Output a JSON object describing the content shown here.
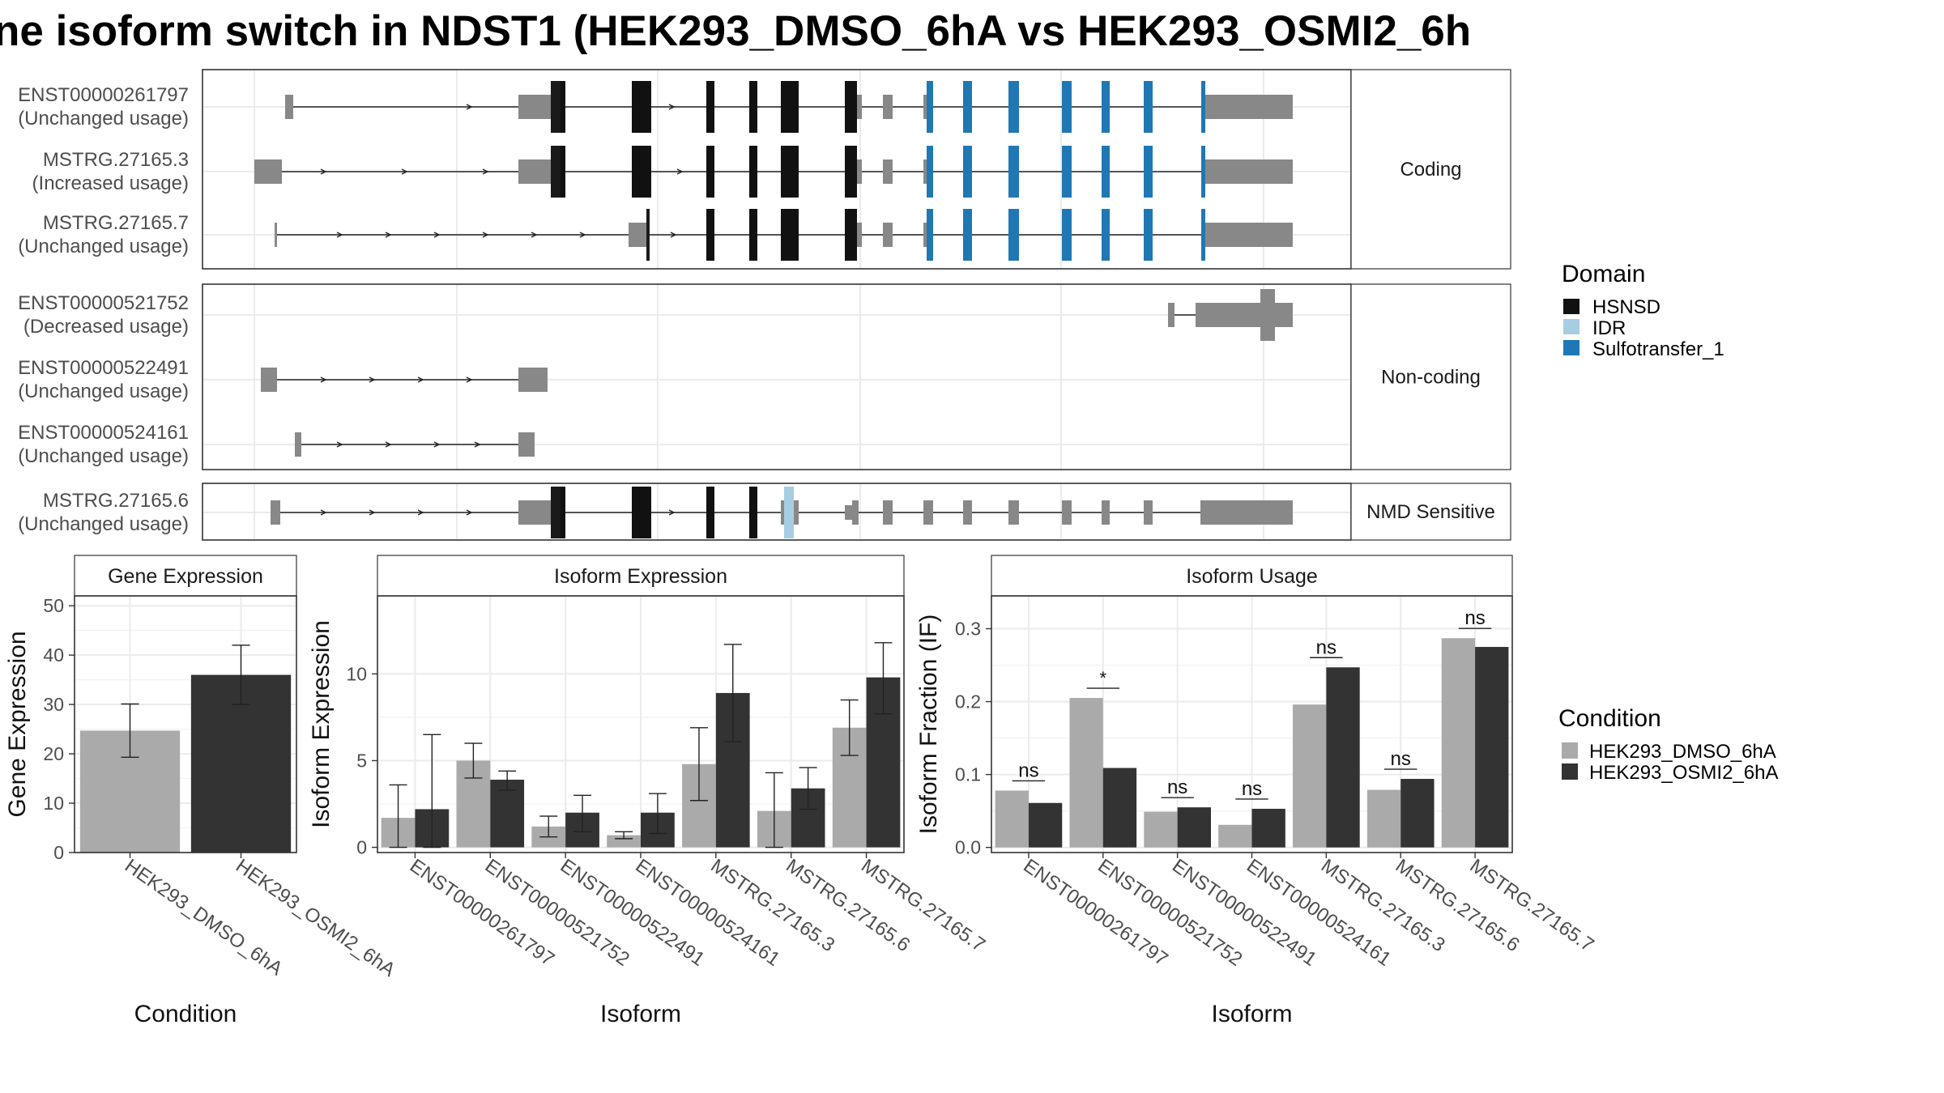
{
  "title": "ne isoform switch in NDST1 (HEK293_DMSO_6hA vs HEK293_OSMI2_6h",
  "colors": {
    "utr": "#888888",
    "cds": "#1a1a1a",
    "HSNSD": "#111111",
    "IDR": "#a6cee3",
    "Sulfotransfer_1": "#1f78b4",
    "cond1": "#aaaaaa",
    "cond2": "#333333"
  },
  "structure": {
    "panels": [
      {
        "label": "Coding",
        "transcripts": [
          {
            "id": "ENST00000261797",
            "usage": "(Unchanged usage)",
            "intron": [
              352,
              1595
            ],
            "arrows": [
              580,
              830
            ],
            "exons": [
              {
                "s": 352,
                "e": 362,
                "t": "utr"
              },
              {
                "s": 640,
                "e": 686,
                "t": "utr"
              },
              {
                "s": 662,
                "e": 686,
                "t": "utr"
              },
              {
                "s": 680,
                "e": 692,
                "t": "cds"
              },
              {
                "s": 692,
                "e": 698,
                "t": "HSNSD"
              },
              {
                "s": 780,
                "e": 804,
                "t": "HSNSD"
              },
              {
                "s": 872,
                "e": 882,
                "t": "HSNSD"
              },
              {
                "s": 925,
                "e": 935,
                "t": "HSNSD"
              },
              {
                "s": 964,
                "e": 986,
                "t": "HSNSD"
              },
              {
                "s": 1043,
                "e": 1058,
                "t": "HSNSD"
              },
              {
                "s": 1058,
                "e": 1064,
                "t": "utr"
              },
              {
                "s": 1090,
                "e": 1102,
                "t": "utr"
              },
              {
                "s": 1140,
                "e": 1144,
                "t": "utr"
              },
              {
                "s": 1144,
                "e": 1152,
                "t": "Sulfotransfer_1"
              },
              {
                "s": 1189,
                "e": 1200,
                "t": "Sulfotransfer_1"
              },
              {
                "s": 1245,
                "e": 1258,
                "t": "Sulfotransfer_1"
              },
              {
                "s": 1311,
                "e": 1323,
                "t": "Sulfotransfer_1"
              },
              {
                "s": 1360,
                "e": 1370,
                "t": "Sulfotransfer_1"
              },
              {
                "s": 1412,
                "e": 1423,
                "t": "Sulfotransfer_1"
              },
              {
                "s": 1483,
                "e": 1488,
                "t": "Sulfotransfer_1"
              },
              {
                "s": 1488,
                "e": 1596,
                "t": "utr"
              }
            ]
          },
          {
            "id": "MSTRG.27165.3",
            "usage": "(Increased usage)",
            "intron": [
              314,
              1595
            ],
            "arrows": [
              400,
              500,
              600,
              840
            ],
            "exons": [
              {
                "s": 314,
                "e": 348,
                "t": "utr"
              },
              {
                "s": 640,
                "e": 686,
                "t": "utr"
              },
              {
                "s": 662,
                "e": 686,
                "t": "utr"
              },
              {
                "s": 680,
                "e": 692,
                "t": "cds"
              },
              {
                "s": 692,
                "e": 698,
                "t": "HSNSD"
              },
              {
                "s": 780,
                "e": 804,
                "t": "HSNSD"
              },
              {
                "s": 872,
                "e": 882,
                "t": "HSNSD"
              },
              {
                "s": 925,
                "e": 935,
                "t": "HSNSD"
              },
              {
                "s": 964,
                "e": 986,
                "t": "HSNSD"
              },
              {
                "s": 1043,
                "e": 1058,
                "t": "HSNSD"
              },
              {
                "s": 1058,
                "e": 1064,
                "t": "utr"
              },
              {
                "s": 1090,
                "e": 1102,
                "t": "utr"
              },
              {
                "s": 1140,
                "e": 1144,
                "t": "utr"
              },
              {
                "s": 1144,
                "e": 1152,
                "t": "Sulfotransfer_1"
              },
              {
                "s": 1189,
                "e": 1200,
                "t": "Sulfotransfer_1"
              },
              {
                "s": 1245,
                "e": 1258,
                "t": "Sulfotransfer_1"
              },
              {
                "s": 1311,
                "e": 1323,
                "t": "Sulfotransfer_1"
              },
              {
                "s": 1360,
                "e": 1370,
                "t": "Sulfotransfer_1"
              },
              {
                "s": 1412,
                "e": 1423,
                "t": "Sulfotransfer_1"
              },
              {
                "s": 1483,
                "e": 1488,
                "t": "Sulfotransfer_1"
              },
              {
                "s": 1488,
                "e": 1596,
                "t": "utr"
              }
            ]
          },
          {
            "id": "MSTRG.27165.7",
            "usage": "(Unchanged usage)",
            "intron": [
              340,
              1595
            ],
            "arrows": [
              420,
              480,
              540,
              600,
              660,
              720,
              832
            ],
            "exons": [
              {
                "s": 339,
                "e": 342,
                "t": "utr"
              },
              {
                "s": 776,
                "e": 800,
                "t": "utr"
              },
              {
                "s": 798,
                "e": 802,
                "t": "cds"
              },
              {
                "s": 872,
                "e": 882,
                "t": "HSNSD"
              },
              {
                "s": 925,
                "e": 935,
                "t": "HSNSD"
              },
              {
                "s": 964,
                "e": 986,
                "t": "HSNSD"
              },
              {
                "s": 1043,
                "e": 1058,
                "t": "HSNSD"
              },
              {
                "s": 1058,
                "e": 1064,
                "t": "utr"
              },
              {
                "s": 1090,
                "e": 1102,
                "t": "utr"
              },
              {
                "s": 1140,
                "e": 1144,
                "t": "utr"
              },
              {
                "s": 1144,
                "e": 1152,
                "t": "Sulfotransfer_1"
              },
              {
                "s": 1189,
                "e": 1200,
                "t": "Sulfotransfer_1"
              },
              {
                "s": 1245,
                "e": 1258,
                "t": "Sulfotransfer_1"
              },
              {
                "s": 1311,
                "e": 1323,
                "t": "Sulfotransfer_1"
              },
              {
                "s": 1360,
                "e": 1370,
                "t": "Sulfotransfer_1"
              },
              {
                "s": 1412,
                "e": 1423,
                "t": "Sulfotransfer_1"
              },
              {
                "s": 1483,
                "e": 1488,
                "t": "Sulfotransfer_1"
              },
              {
                "s": 1488,
                "e": 1596,
                "t": "utr"
              }
            ]
          }
        ]
      },
      {
        "label": "Non-coding",
        "transcripts": [
          {
            "id": "ENST00000521752",
            "usage": "(Decreased usage)",
            "intron": [
              1445,
              1595
            ],
            "arrows": [],
            "exons": [
              {
                "s": 1442,
                "e": 1450,
                "t": "utr"
              },
              {
                "s": 1476,
                "e": 1596,
                "t": "utr"
              },
              {
                "s": 1556,
                "e": 1574,
                "t": "utr",
                "big": true
              }
            ]
          },
          {
            "id": "ENST00000522491",
            "usage": "(Unchanged usage)",
            "intron": [
              322,
              676
            ],
            "arrows": [
              400,
              460,
              520,
              580
            ],
            "exons": [
              {
                "s": 322,
                "e": 342,
                "t": "utr"
              },
              {
                "s": 640,
                "e": 676,
                "t": "utr"
              }
            ]
          },
          {
            "id": "ENST00000524161",
            "usage": "(Unchanged usage)",
            "intron": [
              366,
              660
            ],
            "arrows": [
              420,
              480,
              540,
              590
            ],
            "exons": [
              {
                "s": 364,
                "e": 372,
                "t": "utr"
              },
              {
                "s": 640,
                "e": 660,
                "t": "utr"
              }
            ]
          }
        ]
      },
      {
        "label": "NMD Sensitive",
        "transcripts": [
          {
            "id": "MSTRG.27165.6",
            "usage": "(Unchanged usage)",
            "intron": [
              334,
              1595
            ],
            "arrows": [
              400,
              460,
              520,
              580,
              830,
              880
            ],
            "exons": [
              {
                "s": 334,
                "e": 346,
                "t": "utr"
              },
              {
                "s": 640,
                "e": 686,
                "t": "utr"
              },
              {
                "s": 662,
                "e": 686,
                "t": "utr"
              },
              {
                "s": 680,
                "e": 692,
                "t": "cds"
              },
              {
                "s": 692,
                "e": 698,
                "t": "HSNSD"
              },
              {
                "s": 780,
                "e": 804,
                "t": "HSNSD"
              },
              {
                "s": 872,
                "e": 882,
                "t": "HSNSD"
              },
              {
                "s": 925,
                "e": 935,
                "t": "HSNSD"
              },
              {
                "s": 964,
                "e": 968,
                "t": "utr"
              },
              {
                "s": 968,
                "e": 980,
                "t": "IDR"
              },
              {
                "s": 980,
                "e": 986,
                "t": "utr"
              },
              {
                "s": 1043,
                "e": 1052,
                "t": "utr",
                "small": true
              },
              {
                "s": 1052,
                "e": 1060,
                "t": "utr"
              },
              {
                "s": 1090,
                "e": 1102,
                "t": "utr"
              },
              {
                "s": 1140,
                "e": 1152,
                "t": "utr"
              },
              {
                "s": 1189,
                "e": 1200,
                "t": "utr"
              },
              {
                "s": 1245,
                "e": 1258,
                "t": "utr"
              },
              {
                "s": 1311,
                "e": 1323,
                "t": "utr"
              },
              {
                "s": 1360,
                "e": 1370,
                "t": "utr"
              },
              {
                "s": 1412,
                "e": 1423,
                "t": "utr"
              },
              {
                "s": 1482,
                "e": 1596,
                "t": "utr"
              }
            ]
          }
        ]
      }
    ]
  },
  "legend_domain": {
    "title": "Domain",
    "items": [
      {
        "label": "HSNSD",
        "color": "#111111"
      },
      {
        "label": "IDR",
        "color": "#a6cee3"
      },
      {
        "label": "Sulfotransfer_1",
        "color": "#1f78b4"
      }
    ]
  },
  "legend_condition": {
    "title": "Condition",
    "items": [
      {
        "label": "HEK293_DMSO_6hA",
        "color": "#aaaaaa"
      },
      {
        "label": "HEK293_OSMI2_6hA",
        "color": "#333333"
      }
    ]
  },
  "chart_data": [
    {
      "type": "bar",
      "title": "Gene Expression",
      "xlabel": "Condition",
      "ylabel": "Gene Expression",
      "ylim": [
        0,
        52
      ],
      "yticks": [
        0,
        10,
        20,
        30,
        40,
        50
      ],
      "categories": [
        "HEK293_DMSO_6hA",
        "HEK293_OSMI2_6hA"
      ],
      "values": [
        24.7,
        36.0
      ],
      "error": [
        [
          19.3,
          30.1
        ],
        [
          30.0,
          42.0
        ]
      ]
    },
    {
      "type": "bar",
      "title": "Isoform Expression",
      "xlabel": "Isoform",
      "ylabel": "Isoform Expression",
      "ylim": [
        -0.3,
        14.5
      ],
      "yticks": [
        0,
        5,
        10
      ],
      "categories": [
        "ENST00000261797",
        "ENST00000521752",
        "ENST00000522491",
        "ENST00000524161",
        "MSTRG.27165.3",
        "MSTRG.27165.6",
        "MSTRG.27165.7"
      ],
      "series": [
        {
          "name": "HEK293_DMSO_6hA",
          "values": [
            1.7,
            5.0,
            1.2,
            0.7,
            4.8,
            2.1,
            6.9
          ],
          "error": [
            [
              0.0,
              3.6
            ],
            [
              4.0,
              6.0
            ],
            [
              0.6,
              1.8
            ],
            [
              0.5,
              0.9
            ],
            [
              2.7,
              6.9
            ],
            [
              0.0,
              4.3
            ],
            [
              5.3,
              8.5
            ]
          ]
        },
        {
          "name": "HEK293_OSMI2_6hA",
          "values": [
            2.2,
            3.9,
            2.0,
            2.0,
            8.9,
            3.4,
            9.8
          ],
          "error": [
            [
              0.0,
              6.5
            ],
            [
              3.3,
              4.4
            ],
            [
              0.9,
              3.0
            ],
            [
              0.8,
              3.1
            ],
            [
              6.1,
              11.7
            ],
            [
              2.2,
              4.6
            ],
            [
              7.7,
              11.8
            ]
          ]
        }
      ]
    },
    {
      "type": "bar",
      "title": "Isoform Usage",
      "xlabel": "Isoform",
      "ylabel": "Isoform Fraction (IF)",
      "ylim": [
        -0.007,
        0.345
      ],
      "yticks": [
        0.0,
        0.1,
        0.2,
        0.3
      ],
      "ytick_labels": [
        "0.0",
        "0.1",
        "0.2",
        "0.3"
      ],
      "categories": [
        "ENST00000261797",
        "ENST00000521752",
        "ENST00000522491",
        "ENST00000524161",
        "MSTRG.27165.3",
        "MSTRG.27165.6",
        "MSTRG.27165.7"
      ],
      "series": [
        {
          "name": "HEK293_DMSO_6hA",
          "values": [
            0.078,
            0.205,
            0.049,
            0.031,
            0.196,
            0.079,
            0.287
          ]
        },
        {
          "name": "HEK293_OSMI2_6hA",
          "values": [
            0.061,
            0.109,
            0.055,
            0.053,
            0.247,
            0.094,
            0.275
          ]
        }
      ],
      "significance": [
        "ns",
        "*",
        "ns",
        "ns",
        "ns",
        "ns",
        "ns"
      ]
    }
  ]
}
